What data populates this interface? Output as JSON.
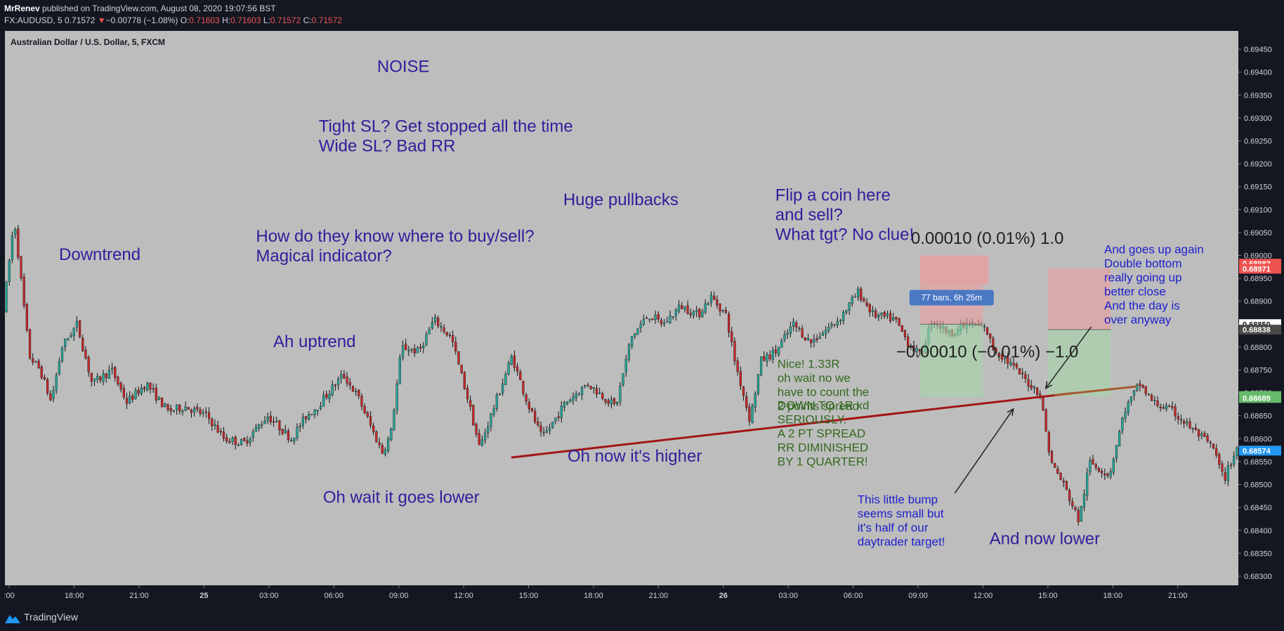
{
  "header": {
    "author": "MrRenev",
    "published_text": " published on TradingView.com, August 08, 2020 19:07:56 BST",
    "symbol": "FX:AUDUSD, 5",
    "last": "0.71572",
    "change_arrow": "▼",
    "change": "−0.00778 (−1.08%)",
    "o_label": "O:",
    "o": "0.71603",
    "h_label": "H:",
    "h": "0.71603",
    "l_label": "L:",
    "l": "0.71572",
    "c_label": "C:",
    "c": "0.71572"
  },
  "footer": {
    "brand": "TradingView"
  },
  "colors": {
    "background": "#131722",
    "plot_bg": "#bdbdbd",
    "up_candle": "#26a69a",
    "down_candle": "#c62828",
    "annotation_purple": "#2e1f9c",
    "annotation_green": "#33691e",
    "annotation_blue": "#1e1ecc",
    "trendline": "#a31515"
  },
  "chart_data": {
    "type": "candlestick",
    "title": "Australian Dollar / U.S. Dollar, 5, FXCM",
    "y_axis": {
      "range": [
        0.6828,
        0.6949
      ],
      "tick_labels": [
        "0.69450",
        "0.69400",
        "0.69350",
        "0.69300",
        "0.69250",
        "0.69200",
        "0.69150",
        "0.69100",
        "0.69050",
        "0.69000",
        "0.68950",
        "0.68900",
        "0.68850",
        "0.68800",
        "0.68750",
        "0.68700",
        "0.68650",
        "0.68600",
        "0.68550",
        "0.68500",
        "0.68450",
        "0.68400",
        "0.68350",
        "0.68300"
      ],
      "tick_values": [
        0.6945,
        0.694,
        0.6935,
        0.693,
        0.6925,
        0.692,
        0.6915,
        0.691,
        0.6905,
        0.69,
        0.6895,
        0.689,
        0.6885,
        0.688,
        0.6875,
        0.687,
        0.6865,
        0.686,
        0.6855,
        0.685,
        0.6845,
        0.684,
        0.6835,
        0.683
      ]
    },
    "x_axis": {
      "tick_labels": [
        ":00",
        "18:00",
        "21:00",
        "25",
        "03:00",
        "06:00",
        "09:00",
        "12:00",
        "15:00",
        "18:00",
        "21:00",
        "26",
        "03:00",
        "06:00",
        "09:00",
        "12:00",
        "15:00",
        "18:00",
        "21:00"
      ],
      "tick_hours": [
        15,
        18,
        21,
        24,
        27,
        30,
        33,
        36,
        39,
        42,
        45,
        48,
        51,
        54,
        57,
        60,
        63,
        66,
        69
      ],
      "hour_range": [
        14.8,
        71.8
      ]
    },
    "price_path": [
      [
        14.8,
        0.6888
      ],
      [
        15.3,
        0.6908
      ],
      [
        16.0,
        0.6878
      ],
      [
        16.5,
        0.6875
      ],
      [
        17.0,
        0.6868
      ],
      [
        17.5,
        0.688
      ],
      [
        18.2,
        0.6885
      ],
      [
        18.9,
        0.6872
      ],
      [
        19.8,
        0.6875
      ],
      [
        20.5,
        0.6868
      ],
      [
        21.4,
        0.6872
      ],
      [
        22.4,
        0.6866
      ],
      [
        23.2,
        0.6867
      ],
      [
        24.2,
        0.6865
      ],
      [
        25.0,
        0.686
      ],
      [
        25.9,
        0.6859
      ],
      [
        27.0,
        0.6865
      ],
      [
        28.1,
        0.686
      ],
      [
        28.8,
        0.6865
      ],
      [
        29.3,
        0.6867
      ],
      [
        30.5,
        0.6874
      ],
      [
        31.2,
        0.6869
      ],
      [
        32.3,
        0.6857
      ],
      [
        32.7,
        0.6861
      ],
      [
        33.2,
        0.688
      ],
      [
        34.0,
        0.6879
      ],
      [
        34.7,
        0.6886
      ],
      [
        35.5,
        0.6882
      ],
      [
        36.3,
        0.6868
      ],
      [
        36.8,
        0.6858
      ],
      [
        37.7,
        0.687
      ],
      [
        38.3,
        0.6878
      ],
      [
        39.0,
        0.6868
      ],
      [
        39.7,
        0.686
      ],
      [
        40.8,
        0.6868
      ],
      [
        41.8,
        0.6872
      ],
      [
        43.1,
        0.6867
      ],
      [
        43.8,
        0.6882
      ],
      [
        44.6,
        0.6887
      ],
      [
        45.3,
        0.6885
      ],
      [
        46.1,
        0.6889
      ],
      [
        46.9,
        0.6887
      ],
      [
        47.5,
        0.6891
      ],
      [
        48.2,
        0.6887
      ],
      [
        48.6,
        0.6877
      ],
      [
        49.3,
        0.6864
      ],
      [
        49.8,
        0.6877
      ],
      [
        50.5,
        0.6879
      ],
      [
        51.3,
        0.6885
      ],
      [
        52.1,
        0.6881
      ],
      [
        53.4,
        0.6886
      ],
      [
        54.3,
        0.6892
      ],
      [
        55.0,
        0.6887
      ],
      [
        56.0,
        0.6886
      ],
      [
        56.6,
        0.6881
      ],
      [
        57.2,
        0.6878
      ],
      [
        57.7,
        0.6886
      ],
      [
        58.5,
        0.6883
      ],
      [
        59.4,
        0.6885
      ],
      [
        60.2,
        0.6884
      ],
      [
        60.5,
        0.688
      ],
      [
        61.4,
        0.6876
      ],
      [
        62.2,
        0.6872
      ],
      [
        62.7,
        0.687
      ],
      [
        63.2,
        0.6855
      ],
      [
        63.8,
        0.685
      ],
      [
        64.5,
        0.6842
      ],
      [
        65.0,
        0.6855
      ],
      [
        65.9,
        0.6852
      ],
      [
        66.6,
        0.6866
      ],
      [
        67.3,
        0.6872
      ],
      [
        67.9,
        0.6868
      ],
      [
        68.8,
        0.6866
      ],
      [
        70.0,
        0.6861
      ],
      [
        70.7,
        0.6858
      ],
      [
        71.2,
        0.6851
      ],
      [
        71.8,
        0.6858
      ]
    ],
    "price_labels": [
      {
        "text": "0.68982",
        "value": 0.68982,
        "bg": "#ef5350"
      },
      {
        "text": "0.68971",
        "value": 0.68971,
        "bg": "#ef5350"
      },
      {
        "text": "0.68850",
        "value": 0.6885,
        "bg": "#ffffff",
        "fg": "#131722"
      },
      {
        "text": "0.68838",
        "value": 0.68838,
        "bg": "#4a4a4a"
      },
      {
        "text": "0.68693",
        "value": 0.68693,
        "bg": "#66bb6a"
      },
      {
        "text": "0.68689",
        "value": 0.68689,
        "bg": "#66bb6a"
      },
      {
        "text": "0.68574",
        "value": 0.68574,
        "bg": "#2196f3"
      }
    ],
    "trendline": {
      "from": [
        38.2,
        0.68559
      ],
      "to": [
        64.1,
        0.68699
      ]
    },
    "trendline_ext": {
      "from": [
        63.3,
        0.68695
      ],
      "to": [
        67.1,
        0.68714
      ]
    },
    "positions": [
      {
        "t0": 57.1,
        "t1": 60.0,
        "stop_top": 0.68937,
        "entry": 0.6885,
        "target_bottom": 0.68691,
        "label": "77 bars, 6h 25m"
      },
      {
        "t0": 63.0,
        "t1": 65.9,
        "stop_top": 0.68972,
        "entry": 0.68838,
        "target_bottom": 0.68693
      }
    ],
    "position_texts": [
      {
        "text": "0.00010 (0.01%) 1.0",
        "anchor": [
          60.2,
          0.69025
        ]
      },
      {
        "text": "−0.00010 (−0.01%) −1.0",
        "anchor": [
          60.2,
          0.68778
        ]
      }
    ],
    "annotations": [
      {
        "text": "Downtrend",
        "color": "#2e1f9c",
        "size": 24,
        "lines": [
          "Downtrend"
        ],
        "anchor": [
          17.3,
          0.6899
        ]
      },
      {
        "text": "NOISE",
        "color": "#2e1f9c",
        "size": 24,
        "lines": [
          "NOISE"
        ],
        "anchor": [
          32.0,
          0.694
        ]
      },
      {
        "lines": [
          "Tight SL? Get stopped all the time",
          "Wide SL? Bad RR"
        ],
        "color": "#2e1f9c",
        "size": 24,
        "anchor": [
          29.3,
          0.6927
        ]
      },
      {
        "lines": [
          "How do they know where to buy/sell?",
          "Magical indicator?"
        ],
        "color": "#2e1f9c",
        "size": 24,
        "anchor": [
          26.4,
          0.6903
        ]
      },
      {
        "lines": [
          "Huge pullbacks"
        ],
        "color": "#2e1f9c",
        "size": 24,
        "anchor": [
          40.6,
          0.6911
        ]
      },
      {
        "lines": [
          "Ah uptrend"
        ],
        "color": "#2e1f9c",
        "size": 24,
        "anchor": [
          27.2,
          0.688
        ]
      },
      {
        "lines": [
          "Flip a coin here",
          "and sell?",
          "What tgt? No clue!"
        ],
        "color": "#2e1f9c",
        "size": 24,
        "anchor": [
          50.4,
          0.6912
        ]
      },
      {
        "lines": [
          "Oh wait it goes lower"
        ],
        "color": "#2e1f9c",
        "size": 24,
        "anchor": [
          29.5,
          0.6846
        ]
      },
      {
        "lines": [
          "Oh now it's higher"
        ],
        "color": "#2e1f9c",
        "size": 24,
        "anchor": [
          40.8,
          0.6855
        ]
      },
      {
        "lines": [
          "And now lower"
        ],
        "color": "#2e1f9c",
        "size": 24,
        "anchor": [
          60.3,
          0.6837
        ]
      },
      {
        "lines": [
          "Nice! 1.33R",
          "oh wait no we",
          "have to count the",
          "2 points spread"
        ],
        "color": "#33691e",
        "size": 17,
        "anchor": [
          50.5,
          0.68755
        ]
      },
      {
        "lines": [
          "DOWN TO 1R xd",
          "SERIOUSLY.",
          "A 2 PT SPREAD",
          "RR DIMINISHED",
          "BY 1 QUARTER!"
        ],
        "color": "#33691e",
        "size": 17,
        "anchor": [
          50.5,
          0.68664
        ]
      },
      {
        "lines": [
          "This little bump",
          "seems small but",
          "it's half of our",
          "daytrader target!"
        ],
        "color": "#1e1ecc",
        "size": 17,
        "anchor": [
          54.2,
          0.68459
        ]
      },
      {
        "lines": [
          "And goes up again",
          "Double bottom",
          "really going up",
          "better close",
          "And the day is",
          "over anyway"
        ],
        "color": "#1e1ecc",
        "size": 17,
        "anchor": [
          65.6,
          0.69005
        ]
      }
    ],
    "arrows": [
      {
        "from": [
          58.7,
          0.68481
        ],
        "to": [
          61.4,
          0.68665
        ]
      },
      {
        "from": [
          65.0,
          0.68844
        ],
        "to": [
          62.9,
          0.6871
        ]
      }
    ]
  }
}
